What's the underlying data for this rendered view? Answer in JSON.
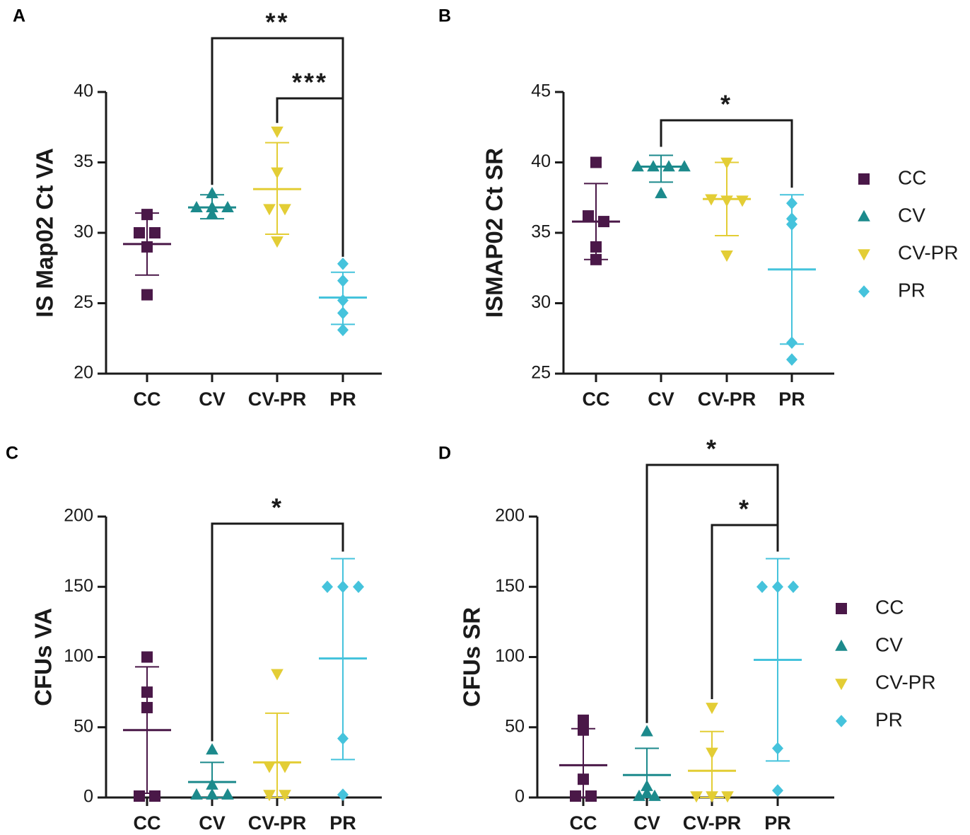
{
  "colors": {
    "CC": "#4a1848",
    "CV": "#1c8a8c",
    "CV-PR": "#e3cd35",
    "PR": "#45c3dc"
  },
  "legend": {
    "items": [
      {
        "label": "CC",
        "key": "CC",
        "marker": "square"
      },
      {
        "label": "CV",
        "key": "CV",
        "marker": "triangle-up"
      },
      {
        "label": "CV-PR",
        "key": "CV-PR",
        "marker": "triangle-down"
      },
      {
        "label": "PR",
        "key": "PR",
        "marker": "diamond"
      }
    ]
  },
  "chart_data": [
    {
      "panel": "A",
      "type": "scatter",
      "ylabel": "IS Map02 Ct VA",
      "ylim": [
        20,
        40
      ],
      "yticks": [
        20,
        25,
        30,
        35,
        40
      ],
      "categories": [
        "CC",
        "CV",
        "CV-PR",
        "PR"
      ],
      "groups": [
        {
          "name": "CC",
          "points": [
            31.3,
            30.0,
            30.0,
            29.0,
            25.6
          ],
          "mean": 29.2,
          "sd_low": 27.0,
          "sd_high": 31.4
        },
        {
          "name": "CV",
          "points": [
            32.8,
            31.8,
            31.8,
            31.8,
            31.3
          ],
          "mean": 31.8,
          "sd_low": 31.0,
          "sd_high": 32.7
        },
        {
          "name": "CV-PR",
          "points": [
            37.2,
            34.3,
            31.7,
            31.7,
            29.4
          ],
          "mean": 33.1,
          "sd_low": 29.9,
          "sd_high": 36.4
        },
        {
          "name": "PR",
          "points": [
            27.8,
            26.6,
            25.2,
            24.3,
            23.1
          ],
          "mean": 25.4,
          "sd_low": 23.5,
          "sd_high": 27.2
        }
      ],
      "significance": [
        {
          "from": "CV",
          "to": "PR",
          "label": "**",
          "level": 0
        },
        {
          "from": "CV-PR",
          "to": "PR",
          "label": "***",
          "level": 1
        }
      ]
    },
    {
      "panel": "B",
      "type": "scatter",
      "ylabel": "ISMAP02 Ct SR",
      "ylim": [
        25,
        45
      ],
      "yticks": [
        25,
        30,
        35,
        40,
        45
      ],
      "categories": [
        "CC",
        "CV",
        "CV-PR",
        "PR"
      ],
      "groups": [
        {
          "name": "CC",
          "points": [
            40.0,
            36.2,
            35.8,
            34.0,
            33.1
          ],
          "mean": 35.8,
          "sd_low": 33.1,
          "sd_high": 38.5
        },
        {
          "name": "CV",
          "points": [
            39.7,
            39.7,
            39.7,
            39.7,
            37.8
          ],
          "mean": 39.7,
          "sd_low": 38.6,
          "sd_high": 40.5
        },
        {
          "name": "CV-PR",
          "points": [
            40.0,
            37.4,
            37.3,
            37.3,
            33.4
          ],
          "mean": 37.4,
          "sd_low": 34.8,
          "sd_high": 40.0
        },
        {
          "name": "PR",
          "points": [
            37.1,
            36.0,
            35.6,
            27.2,
            26.0
          ],
          "mean": 32.4,
          "sd_low": 27.1,
          "sd_high": 37.7
        }
      ],
      "significance": [
        {
          "from": "CV",
          "to": "PR",
          "label": "*",
          "level": 0
        }
      ]
    },
    {
      "panel": "C",
      "type": "scatter",
      "ylabel": "CFUs VA",
      "ylim": [
        0,
        200
      ],
      "yticks": [
        0,
        50,
        100,
        150,
        200
      ],
      "categories": [
        "CC",
        "CV",
        "CV-PR",
        "PR"
      ],
      "groups": [
        {
          "name": "CC",
          "points": [
            100,
            75,
            64,
            1,
            1
          ],
          "mean": 48,
          "sd_low": 3,
          "sd_high": 93
        },
        {
          "name": "CV",
          "points": [
            34,
            9,
            2,
            2,
            2
          ],
          "mean": 11,
          "sd_low": 0,
          "sd_high": 25
        },
        {
          "name": "CV-PR",
          "points": [
            88,
            22,
            22,
            2,
            2
          ],
          "mean": 25,
          "sd_low": 0,
          "sd_high": 60
        },
        {
          "name": "PR",
          "points": [
            150,
            150,
            150,
            42,
            2
          ],
          "mean": 99,
          "sd_low": 27,
          "sd_high": 170
        }
      ],
      "significance": [
        {
          "from": "CV",
          "to": "PR",
          "label": "*",
          "level": 0
        }
      ]
    },
    {
      "panel": "D",
      "type": "scatter",
      "ylabel": "CFUs SR",
      "ylim": [
        0,
        200
      ],
      "yticks": [
        0,
        50,
        100,
        150,
        200
      ],
      "categories": [
        "CC",
        "CV",
        "CV-PR",
        "PR"
      ],
      "groups": [
        {
          "name": "CC",
          "points": [
            55,
            48,
            13,
            1,
            1
          ],
          "mean": 23,
          "sd_low": 0,
          "sd_high": 49
        },
        {
          "name": "CV",
          "points": [
            47,
            8,
            3,
            1,
            1
          ],
          "mean": 16,
          "sd_low": 0,
          "sd_high": 35
        },
        {
          "name": "CV-PR",
          "points": [
            64,
            32,
            1,
            1,
            1
          ],
          "mean": 19,
          "sd_low": 0,
          "sd_high": 47
        },
        {
          "name": "PR",
          "points": [
            150,
            150,
            150,
            35,
            5
          ],
          "mean": 98,
          "sd_low": 26,
          "sd_high": 170
        }
      ],
      "significance": [
        {
          "from": "CV",
          "to": "PR",
          "label": "*",
          "level": 0
        },
        {
          "from": "CV-PR",
          "to": "PR",
          "label": "*",
          "level": 1
        }
      ]
    }
  ]
}
